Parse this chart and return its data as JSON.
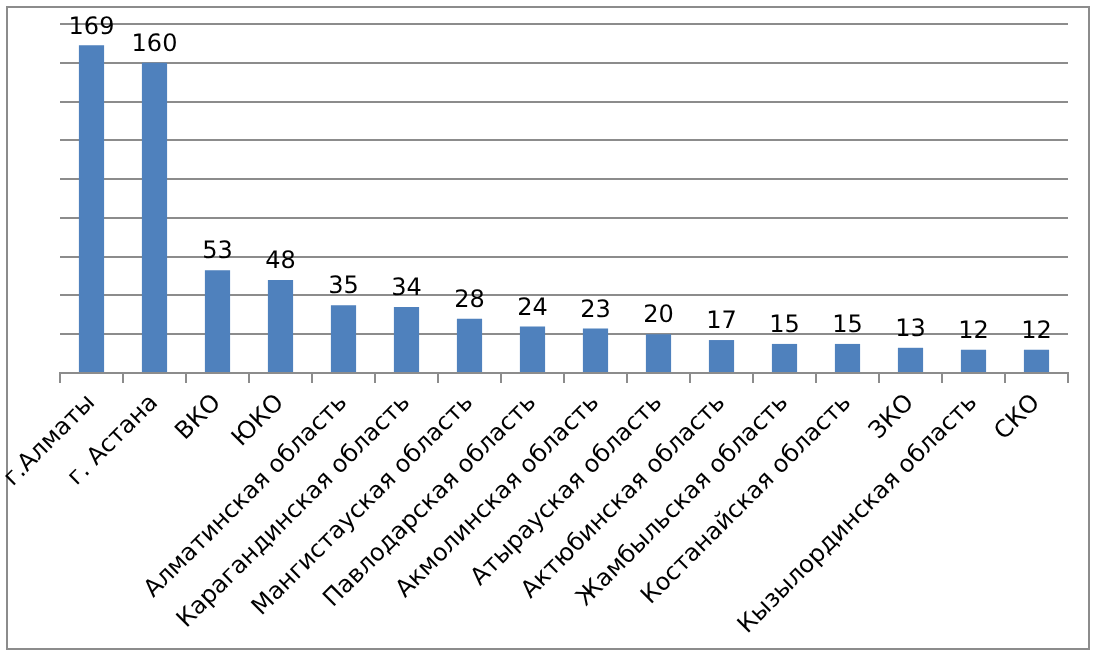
{
  "chart_data": {
    "type": "bar",
    "categories": [
      "г.Алматы",
      "г. Астана",
      "ВКО",
      "ЮКО",
      "Алматинская область",
      "Карагандинская область",
      "Мангистауская область",
      "Павлодарская область",
      "Акмолинская область",
      "Атырауская область",
      "Актюбинская область",
      "Жамбыльская область",
      "Костанайская область",
      "ЗКО",
      "Кызылординская область",
      "СКО"
    ],
    "values": [
      169,
      160,
      53,
      48,
      35,
      34,
      28,
      24,
      23,
      20,
      17,
      15,
      15,
      13,
      12,
      12
    ],
    "color": "#4f81bd",
    "ylim": [
      0,
      180
    ],
    "yticks": [
      {
        "value": 0,
        "label": null
      },
      {
        "value": 20,
        "label": null
      },
      {
        "value": 40,
        "label": null
      },
      {
        "value": 60,
        "label": null
      },
      {
        "value": 80,
        "label": null
      },
      {
        "value": 100,
        "label": null
      },
      {
        "value": 120,
        "label": null
      },
      {
        "value": 140,
        "label": null
      },
      {
        "value": 160,
        "label": null
      },
      {
        "value": 180,
        "label": null
      }
    ],
    "tick_labels": "x",
    "grid": "y",
    "legend": false,
    "data_labels": true
  }
}
